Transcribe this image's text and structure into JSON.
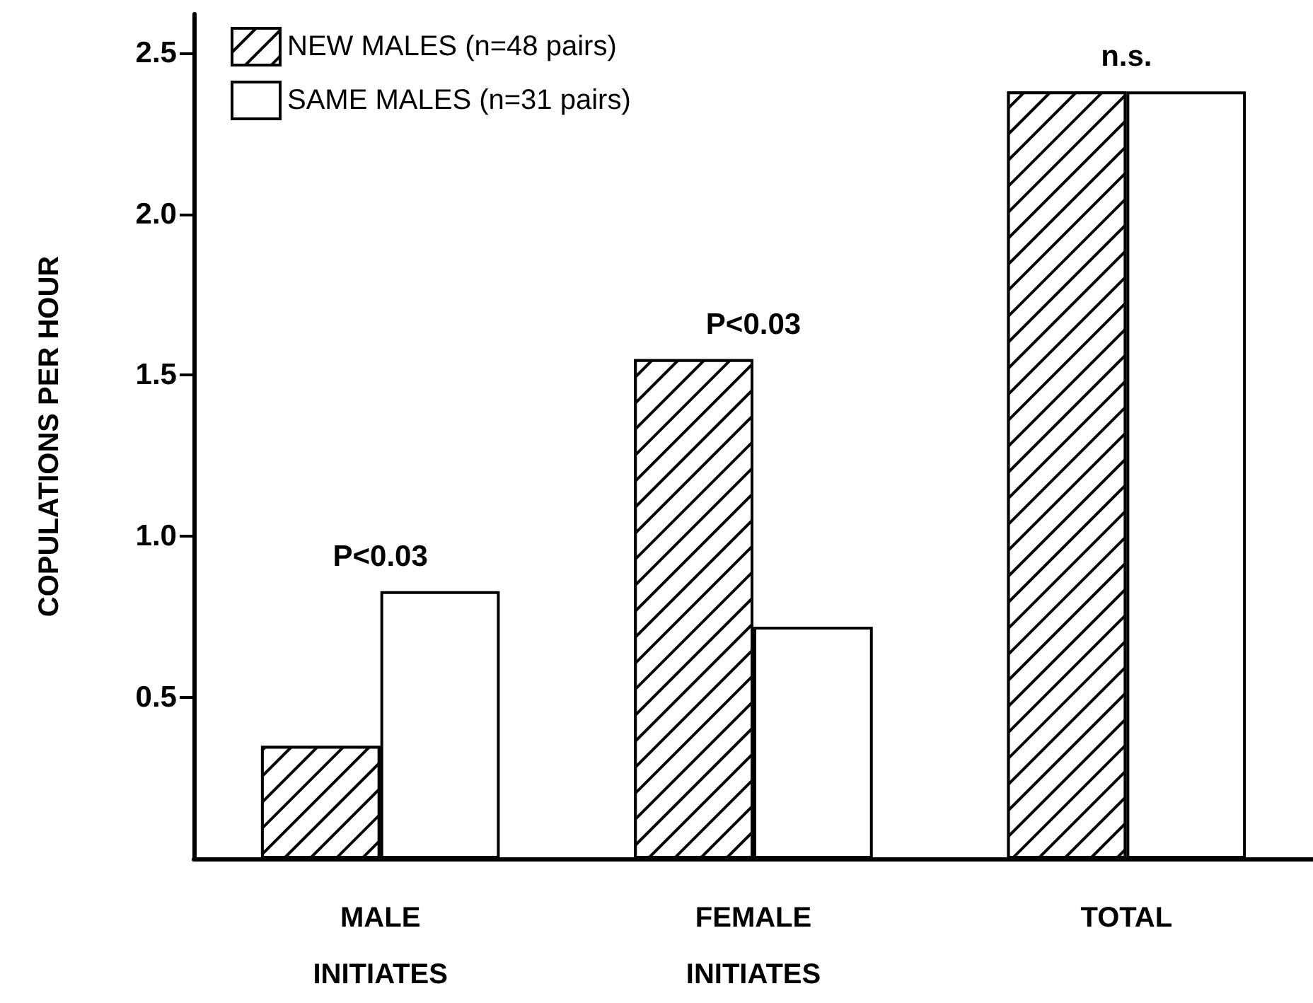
{
  "chart_data": {
    "type": "bar",
    "ylabel": "COPULATIONS PER HOUR",
    "categories": [
      "MALE INITIATES",
      "FEMALE INITIATES",
      "TOTAL"
    ],
    "series": [
      {
        "name": "NEW MALES (n=48 pairs)",
        "color": "#000000",
        "values": [
          0.35,
          1.55,
          2.38
        ]
      },
      {
        "name": "SAME MALES (n=31 pairs)",
        "color": "#ffffff",
        "values": [
          0.83,
          0.72,
          2.38
        ]
      }
    ],
    "ylim": [
      0,
      2.62
    ],
    "yticks": [
      0.5,
      {
        "value": 1,
        "label": "1.0"
      },
      1.5,
      {
        "value": 2,
        "label": "2.0"
      },
      2.5
    ],
    "annotations": [
      "P<0.03",
      "P<0.03",
      "n.s."
    ],
    "legend": "top left",
    "grid": false
  }
}
